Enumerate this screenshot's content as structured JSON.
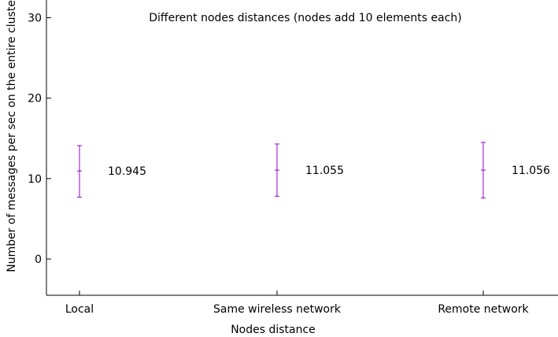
{
  "chart_data": {
    "type": "scatter",
    "title": "Different nodes distances (nodes add 10 elements each)",
    "xlabel": "Nodes distance",
    "ylabel": "Number of messages per sec on the entire cluster",
    "categories": [
      "Local",
      "Same wireless network",
      "Remote network"
    ],
    "values": [
      10.945,
      11.055,
      11.056
    ],
    "error_low": [
      7.7,
      7.8,
      7.6
    ],
    "error_high": [
      14.1,
      14.3,
      14.5
    ],
    "data_labels": [
      "10.945",
      "11.055",
      "11.056"
    ],
    "ylim": [
      -4.5,
      32.2
    ],
    "yticks": [
      0,
      10,
      20,
      30
    ],
    "ytick_labels": [
      "0",
      "10",
      "20",
      "30"
    ],
    "grid": false,
    "legend": "none",
    "series_color": "#9400d3"
  }
}
